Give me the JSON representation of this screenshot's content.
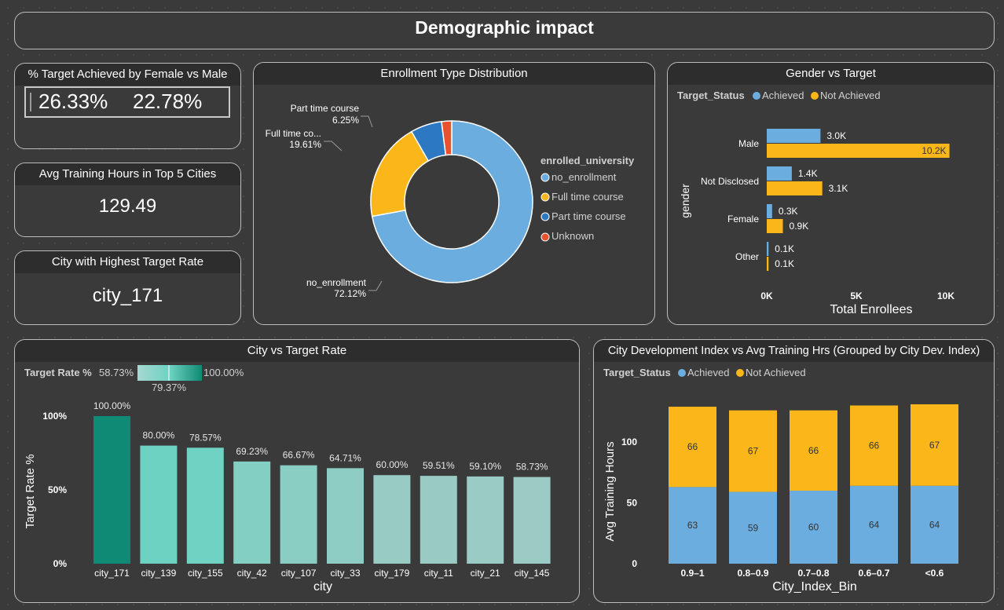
{
  "page_title": "Demographic impact",
  "kpis": {
    "target_female_male": {
      "title": "% Target Achieved by Female vs Male",
      "female": "26.33%",
      "male": "22.78%"
    },
    "avg_training": {
      "title": "Avg Training Hours in Top 5 Cities",
      "value": "129.49"
    },
    "top_city": {
      "title": "City with Highest Target Rate",
      "value": "city_171"
    }
  },
  "colors": {
    "blue": "#6cade0",
    "gold": "#fbb619",
    "dark_blue": "#2c78c2",
    "red": "#e8522f",
    "teal_dark": "#0f8a74",
    "teal_mid": "#6ed2c2",
    "teal_light": "#9bcbc4",
    "bg": "#3b3a3a"
  },
  "chart_data": [
    {
      "id": "enrollment",
      "type": "pie",
      "title": "Enrollment Type Distribution",
      "legend_title": "enrolled_university",
      "legend": [
        "no_enrollment",
        "Full time course",
        "Part time course",
        "Unknown"
      ],
      "values": [
        72.12,
        19.61,
        6.25,
        2.02
      ],
      "data_labels": [
        {
          "name": "no_enrollment",
          "pct": "72.12%"
        },
        {
          "name": "Full time co...",
          "pct": "19.61%"
        },
        {
          "name": "Part time course",
          "pct": "6.25%"
        }
      ],
      "colors": [
        "#6cade0",
        "#fbb619",
        "#2c78c2",
        "#e8522f"
      ]
    },
    {
      "id": "gender",
      "type": "bar",
      "orientation": "horizontal",
      "title": "Gender vs Target",
      "legend_title": "Target_Status",
      "categories": [
        "Male",
        "Not Disclosed",
        "Female",
        "Other"
      ],
      "series": [
        {
          "name": "Achieved",
          "values": [
            3000,
            1400,
            300,
            100
          ],
          "labels": [
            "3.0K",
            "1.4K",
            "0.3K",
            "0.1K"
          ]
        },
        {
          "name": "Not Achieved",
          "values": [
            10200,
            3100,
            900,
            100
          ],
          "labels": [
            "10.2K",
            "3.1K",
            "0.9K",
            "0.1K"
          ]
        }
      ],
      "xlabel": "Total Enrollees",
      "ylabel": "gender",
      "xlim": [
        0,
        12000
      ],
      "xticks": [
        0,
        5000,
        10000
      ],
      "xtick_labels": [
        "0K",
        "5K",
        "10K"
      ]
    },
    {
      "id": "city",
      "type": "bar",
      "title": "City vs Target Rate",
      "legend_title": "Target Rate %",
      "legend_min": "58.73%",
      "legend_mid": "79.37%",
      "legend_max": "100.00%",
      "categories": [
        "city_171",
        "city_139",
        "city_155",
        "city_42",
        "city_107",
        "city_33",
        "city_179",
        "city_11",
        "city_21",
        "city_145"
      ],
      "values": [
        100.0,
        80.0,
        78.57,
        69.23,
        66.67,
        64.71,
        60.0,
        59.51,
        59.1,
        58.73
      ],
      "labels": [
        "100.00%",
        "80.00%",
        "78.57%",
        "69.23%",
        "66.67%",
        "64.71%",
        "60.00%",
        "59.51%",
        "59.10%",
        "58.73%"
      ],
      "xlabel": "city",
      "ylabel": "Target Rate %",
      "ylim": [
        0,
        100
      ],
      "yticks": [
        0,
        50,
        100
      ],
      "ytick_labels": [
        "0%",
        "50%",
        "100%"
      ]
    },
    {
      "id": "cdi",
      "type": "bar",
      "stacked": true,
      "title": "City Development Index vs Avg Training Hrs (Grouped by City Dev. Index)",
      "legend_title": "Target_Status",
      "categories": [
        "0.9–1",
        "0.8–0.9",
        "0.7–0.8",
        "0.6–0.7",
        "<0.6"
      ],
      "series": [
        {
          "name": "Achieved",
          "values": [
            63,
            59,
            60,
            64,
            64
          ]
        },
        {
          "name": "Not Achieved",
          "values": [
            66,
            67,
            66,
            66,
            67
          ]
        }
      ],
      "xlabel": "City_Index_Bin",
      "ylabel": "Avg Training Hours",
      "ylim": [
        0,
        140
      ],
      "yticks": [
        0,
        50,
        100
      ],
      "ytick_labels": [
        "0",
        "50",
        "100"
      ]
    }
  ]
}
